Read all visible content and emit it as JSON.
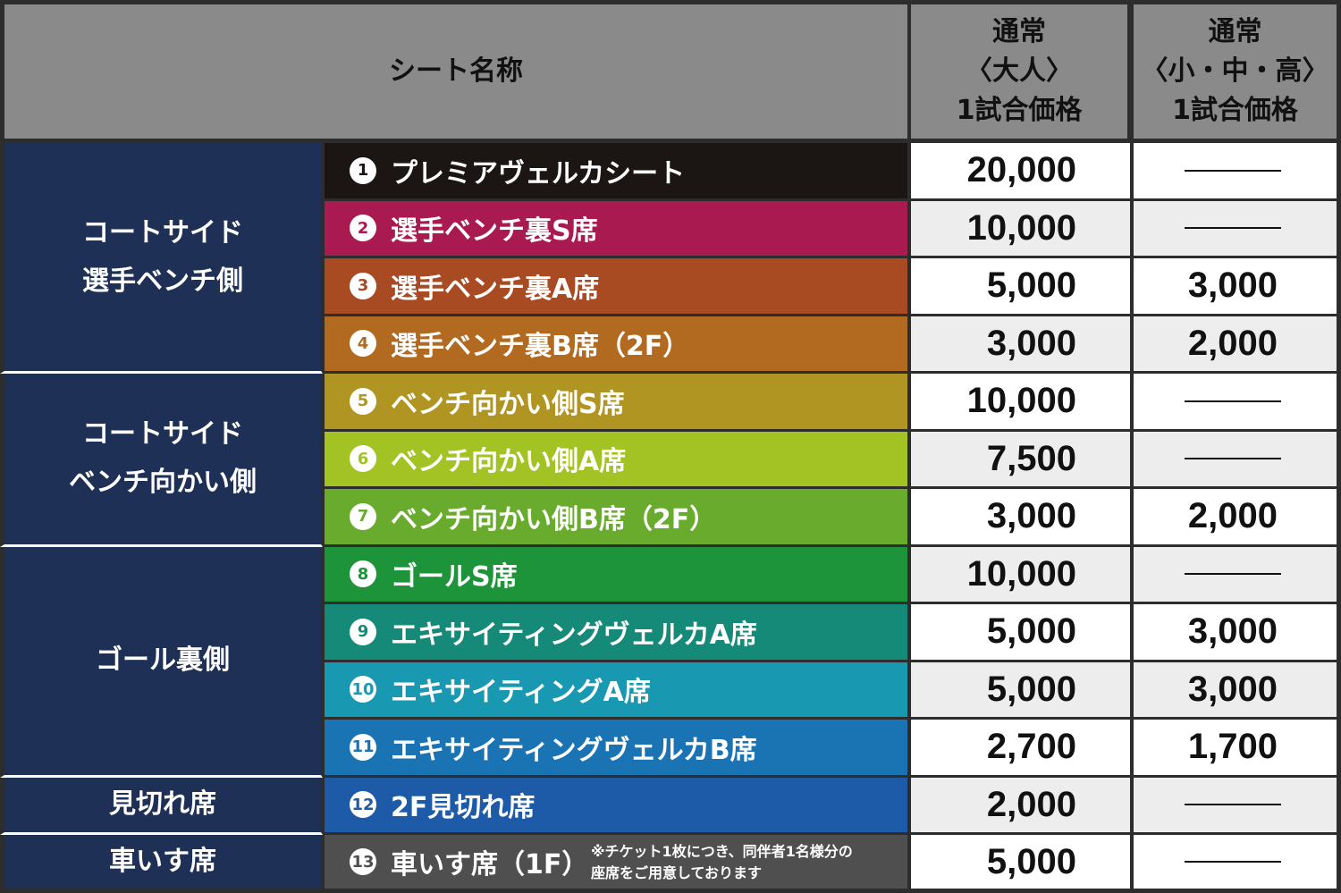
{
  "header": {
    "seat_name": "シート名称",
    "adult_price": "通常\n〈大人〉\n1試合価格",
    "child_price": "通常\n〈小・中・高〉\n1試合価格"
  },
  "groups": [
    {
      "label": "コートサイド\n選手ベンチ側",
      "rows": 4
    },
    {
      "label": "コートサイド\nベンチ向かい側",
      "rows": 3
    },
    {
      "label": "ゴール裏側",
      "rows": 4
    },
    {
      "label": "見切れ席",
      "rows": 1
    },
    {
      "label": "車いす席",
      "rows": 1
    }
  ],
  "seats": [
    {
      "num": "1",
      "name": "プレミアヴェルカシート",
      "color": "#1b1514",
      "adult": "20,000",
      "child": ""
    },
    {
      "num": "2",
      "name": "選手ベンチ裏S席",
      "color": "#a81a50",
      "adult": "10,000",
      "child": ""
    },
    {
      "num": "3",
      "name": "選手ベンチ裏A席",
      "color": "#a84a22",
      "adult": "5,000",
      "child": "3,000"
    },
    {
      "num": "4",
      "name": "選手ベンチ裏B席（2F）",
      "color": "#b16a20",
      "adult": "3,000",
      "child": "2,000"
    },
    {
      "num": "5",
      "name": "ベンチ向かい側S席",
      "color": "#b09522",
      "adult": "10,000",
      "child": ""
    },
    {
      "num": "6",
      "name": "ベンチ向かい側A席",
      "color": "#a3c223",
      "adult": "7,500",
      "child": ""
    },
    {
      "num": "7",
      "name": "ベンチ向かい側B席（2F）",
      "color": "#69ac2d",
      "adult": "3,000",
      "child": "2,000"
    },
    {
      "num": "8",
      "name": "ゴールS席",
      "color": "#1e943a",
      "adult": "10,000",
      "child": ""
    },
    {
      "num": "9",
      "name": "エキサイティングヴェルカA席",
      "color": "#168a78",
      "adult": "5,000",
      "child": "3,000"
    },
    {
      "num": "10",
      "name": "エキサイティングA席",
      "color": "#1898b1",
      "adult": "5,000",
      "child": "3,000"
    },
    {
      "num": "11",
      "name": "エキサイティングヴェルカB席",
      "color": "#1a74b4",
      "adult": "2,700",
      "child": "1,700"
    },
    {
      "num": "12",
      "name": "2F見切れ席",
      "color": "#1d5aa8",
      "adult": "2,000",
      "child": ""
    },
    {
      "num": "13",
      "name": "車いす席（1F）",
      "color": "#4f4f4f",
      "adult": "5,000",
      "child": "",
      "note": "※チケット1枚につき、同伴者1名様分の\n座席をご用意しております"
    }
  ]
}
